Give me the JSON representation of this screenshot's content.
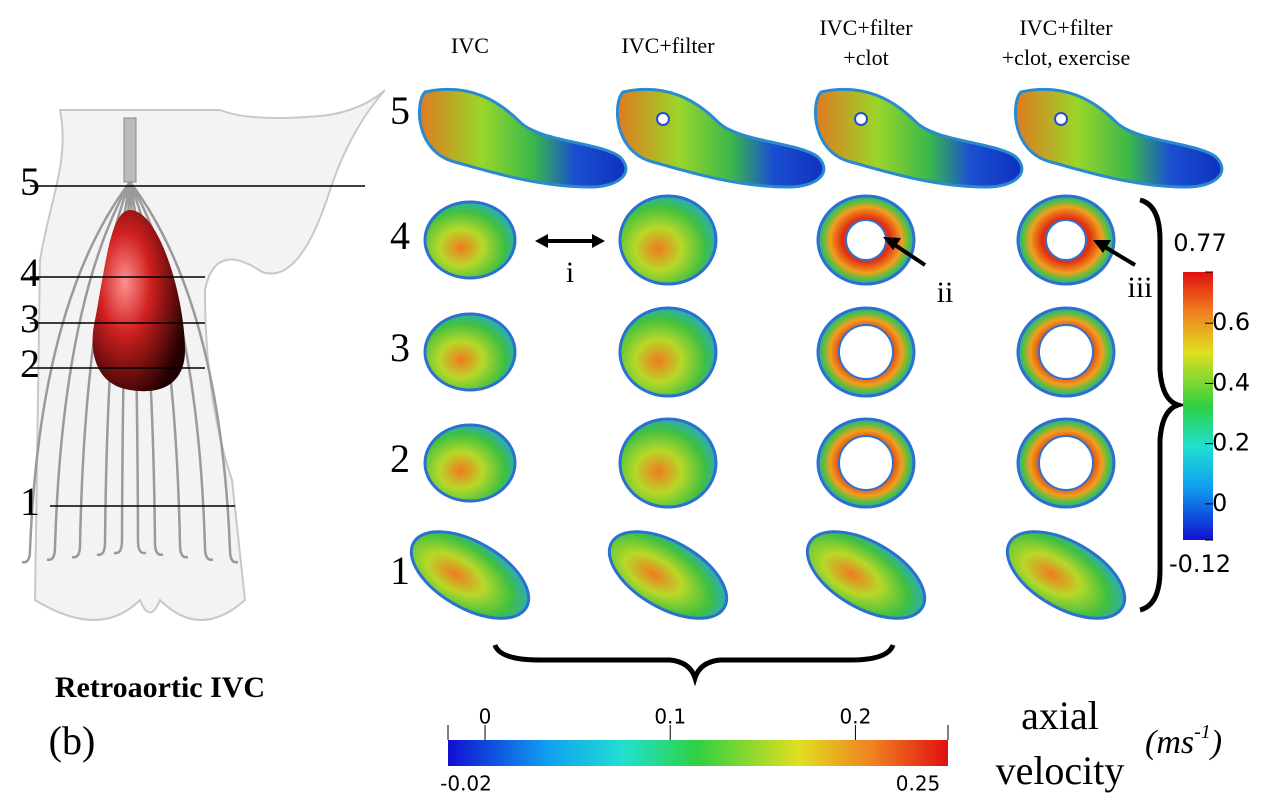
{
  "figure_label": "(b)",
  "model": {
    "title": "Retroaortic IVC",
    "levels": [
      "5",
      "4",
      "3",
      "2",
      "1"
    ]
  },
  "columns": [
    [
      "IVC"
    ],
    [
      "IVC+filter"
    ],
    [
      "IVC+filter",
      "+clot"
    ],
    [
      "IVC+filter",
      "+clot, exercise"
    ]
  ],
  "rows": [
    "5",
    "4",
    "3",
    "2",
    "1"
  ],
  "annotations": [
    "i",
    "ii",
    "iii"
  ],
  "colorbar_vertical": {
    "lim": [
      -0.12,
      0.77
    ],
    "ticks": [
      -0.12,
      0,
      0.2,
      0.4,
      0.6,
      0.77
    ]
  },
  "colorbar_horizontal": {
    "lim": [
      -0.02,
      0.25
    ],
    "ticks": [
      -0.02,
      0,
      0.1,
      0.2,
      0.25
    ]
  },
  "quantity": [
    "axial",
    "velocity"
  ],
  "unit": {
    "open": "(ms",
    "exponent": "-1",
    "close": ")"
  }
}
